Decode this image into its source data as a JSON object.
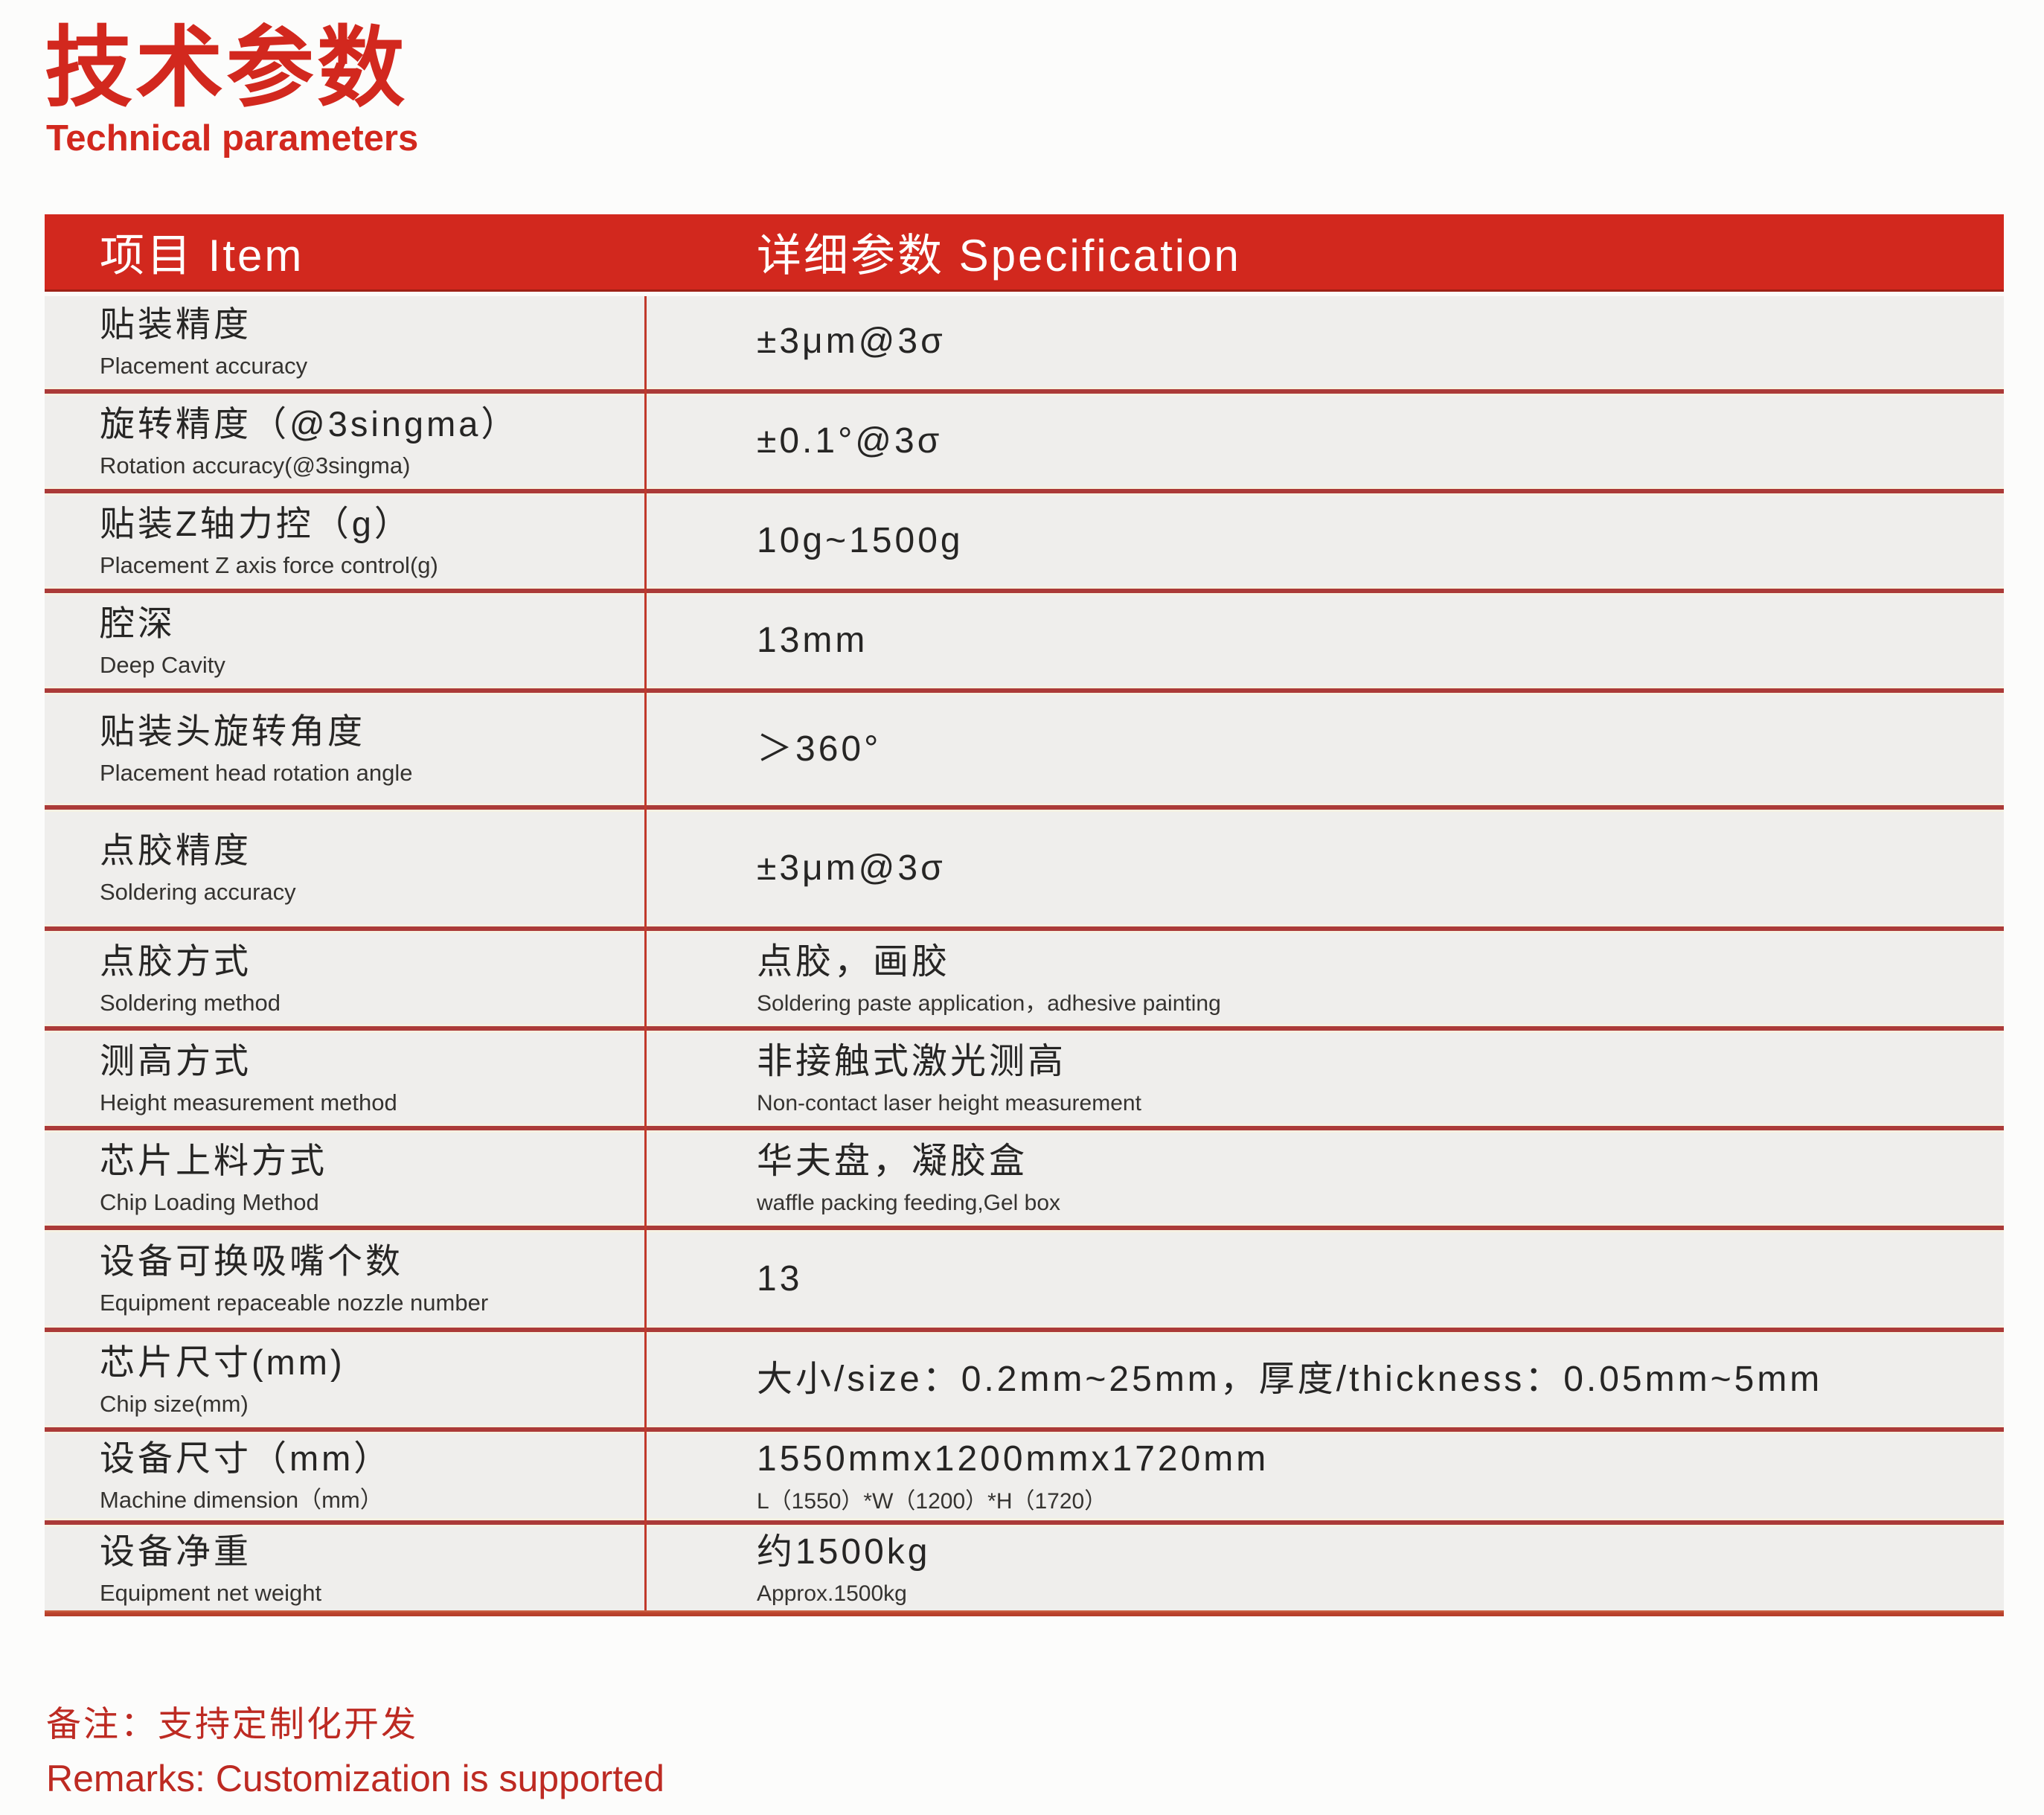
{
  "page": {
    "title_zh": "技术参数",
    "title_en": "Technical parameters"
  },
  "table": {
    "header": {
      "item": "项目 Item",
      "spec": "详细参数 Specification"
    },
    "rows": [
      {
        "item_zh": "贴装精度",
        "item_en": "Placement accuracy",
        "value": "±3μm@3σ",
        "value_sub": ""
      },
      {
        "item_zh": "旋转精度（@3singma）",
        "item_en": "Rotation accuracy(@3singma)",
        "value": "±0.1°@3σ",
        "value_sub": ""
      },
      {
        "item_zh": "贴装Z轴力控（g）",
        "item_en": "Placement Z axis force control(g)",
        "value": "10g~1500g",
        "value_sub": ""
      },
      {
        "item_zh": "腔深",
        "item_en": "Deep Cavity",
        "value": "13mm",
        "value_sub": ""
      },
      {
        "item_zh": "贴装头旋转角度",
        "item_en": "Placement head rotation angle",
        "value": "＞360°",
        "value_sub": ""
      },
      {
        "item_zh": "点胶精度",
        "item_en": "Soldering accuracy",
        "value": "±3μm@3σ",
        "value_sub": ""
      },
      {
        "item_zh": "点胶方式",
        "item_en": "Soldering method",
        "value": "点胶，画胶",
        "value_sub": "Soldering paste application，adhesive painting"
      },
      {
        "item_zh": "测高方式",
        "item_en": "Height measurement method",
        "value": "非接触式激光测高",
        "value_sub": "Non-contact laser height measurement"
      },
      {
        "item_zh": "芯片上料方式",
        "item_en": "Chip Loading Method",
        "value": "华夫盘，凝胶盒",
        "value_sub": "waffle packing feeding,Gel box"
      },
      {
        "item_zh": "设备可换吸嘴个数",
        "item_en": "Equipment repaceable nozzle number",
        "value": "13",
        "value_sub": ""
      },
      {
        "item_zh": "芯片尺寸(mm)",
        "item_en": "Chip size(mm)",
        "value": "大小/size：0.2mm~25mm，厚度/thickness：0.05mm~5mm",
        "value_sub": ""
      },
      {
        "item_zh": "设备尺寸（mm）",
        "item_en": "Machine dimension（mm）",
        "value": "1550mmx1200mmx1720mm",
        "value_sub": "L（1550）*W（1200）*H（1720）"
      },
      {
        "item_zh": "设备净重",
        "item_en": "Equipment net weight",
        "value": "约1500kg",
        "value_sub": "Approx.1500kg"
      }
    ]
  },
  "remarks": {
    "zh": "备注：支持定制化开发",
    "en": "Remarks: Customization is supported"
  },
  "colors": {
    "accent_red": "#d2281e",
    "separator_red": "#ab3a38",
    "bottom_border_red": "#bd452e",
    "row_background": "#efeeec",
    "header_text": "#ffffff"
  }
}
